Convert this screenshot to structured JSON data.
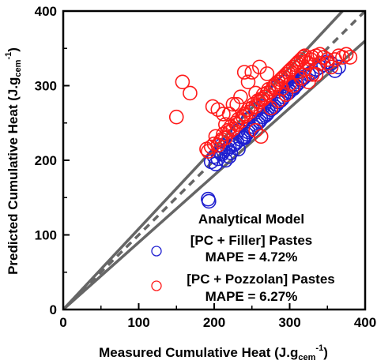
{
  "chart_data": {
    "type": "scatter",
    "xlabel": {
      "main": "Measured Cumulative Heat (J.g",
      "sub": "cem",
      "sup": "-1",
      "close": ")"
    },
    "ylabel": {
      "main": "Predicted Cumulative Heat (J.g",
      "sub": "cem",
      "sup": "-1",
      "close": ")"
    },
    "xlim": [
      0,
      400
    ],
    "ylim": [
      0,
      400
    ],
    "xticks": [
      0,
      100,
      200,
      300,
      400
    ],
    "yticks": [
      0,
      100,
      200,
      300,
      400
    ],
    "xtick_labels": [
      "0",
      "100",
      "200",
      "300",
      "400"
    ],
    "ytick_labels": [
      "0",
      "100",
      "200",
      "300",
      "400"
    ],
    "grid": false,
    "legend_placement": "bottom-right",
    "legend_title": "Analytical Model",
    "reference_lines": [
      {
        "style": "dashed",
        "color": "#666666",
        "x": [
          0,
          400
        ],
        "y": [
          0,
          400
        ]
      },
      {
        "style": "solid",
        "color": "#666666",
        "x": [
          0,
          370
        ],
        "y": [
          0,
          400
        ]
      },
      {
        "style": "solid",
        "color": "#666666",
        "x": [
          0,
          400
        ],
        "y": [
          0,
          360
        ]
      }
    ],
    "series": [
      {
        "name": "[PC + Filler] Pastes",
        "stat": "MAPE = 4.72%",
        "color": "#1f1fd0",
        "x": [
          192,
          193,
          196,
          200,
          202,
          205,
          208,
          210,
          212,
          215,
          218,
          220,
          222,
          225,
          228,
          230,
          232,
          235,
          238,
          240,
          243,
          245,
          248,
          250,
          252,
          255,
          258,
          260,
          262,
          265,
          268,
          270,
          272,
          275,
          278,
          280,
          283,
          285,
          288,
          290,
          292,
          295,
          298,
          300,
          303,
          305,
          308,
          310,
          313,
          315,
          318,
          320,
          325,
          330,
          335,
          340,
          345,
          350,
          355,
          360,
          365,
          232,
          245,
          255,
          265,
          285,
          295,
          305,
          210,
          220,
          240
        ],
        "y": [
          148,
          145,
          198,
          205,
          195,
          202,
          210,
          208,
          212,
          200,
          215,
          218,
          210,
          220,
          222,
          225,
          215,
          228,
          230,
          232,
          235,
          238,
          240,
          242,
          245,
          248,
          250,
          252,
          255,
          258,
          260,
          262,
          265,
          268,
          270,
          272,
          275,
          278,
          280,
          282,
          285,
          288,
          290,
          292,
          295,
          298,
          300,
          302,
          305,
          308,
          310,
          312,
          315,
          318,
          322,
          325,
          328,
          332,
          330,
          320,
          325,
          240,
          255,
          268,
          272,
          300,
          305,
          296,
          220,
          205,
          230
        ]
      },
      {
        "name": "[PC + Pozzolan] Pastes",
        "stat": "MAPE = 6.27%",
        "color": "#ff1a1a",
        "x": [
          150,
          158,
          168,
          190,
          192,
          196,
          200,
          202,
          205,
          208,
          210,
          212,
          215,
          218,
          220,
          222,
          225,
          228,
          230,
          232,
          235,
          238,
          240,
          242,
          245,
          248,
          250,
          252,
          255,
          258,
          260,
          262,
          265,
          268,
          270,
          272,
          275,
          278,
          280,
          282,
          285,
          288,
          290,
          292,
          295,
          298,
          300,
          302,
          305,
          308,
          310,
          312,
          315,
          318,
          320,
          322,
          325,
          328,
          330,
          335,
          340,
          345,
          350,
          355,
          360,
          365,
          370,
          375,
          240,
          250,
          260,
          270,
          245,
          255,
          265,
          275,
          285,
          295,
          305,
          315,
          325,
          335,
          230,
          220,
          215,
          225,
          235,
          290,
          300,
          310,
          320,
          330,
          340,
          350,
          380,
          198,
          205,
          212,
          255,
          262
        ],
        "y": [
          258,
          305,
          290,
          215,
          212,
          218,
          222,
          232,
          220,
          225,
          228,
          235,
          230,
          240,
          238,
          245,
          242,
          250,
          248,
          255,
          252,
          258,
          262,
          260,
          268,
          265,
          270,
          275,
          272,
          280,
          278,
          282,
          288,
          285,
          290,
          295,
          292,
          298,
          300,
          302,
          305,
          308,
          310,
          312,
          315,
          318,
          320,
          322,
          325,
          328,
          330,
          332,
          335,
          338,
          340,
          332,
          330,
          335,
          338,
          340,
          342,
          338,
          330,
          325,
          335,
          340,
          338,
          342,
          318,
          318,
          325,
          316,
          305,
          290,
          282,
          270,
          280,
          288,
          300,
          310,
          305,
          315,
          275,
          262,
          248,
          275,
          285,
          296,
          302,
          318,
          322,
          315,
          330,
          335,
          338,
          272,
          268,
          262,
          240,
          232
        ]
      }
    ]
  }
}
